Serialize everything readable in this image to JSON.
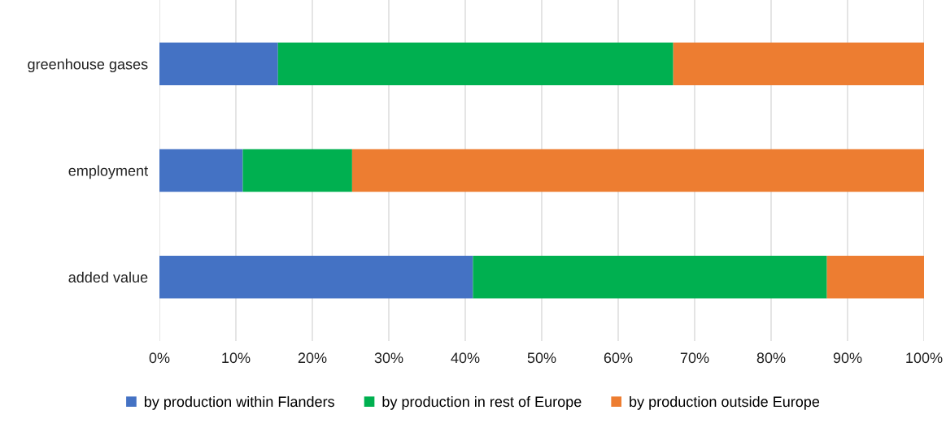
{
  "chart_data": {
    "type": "bar",
    "orientation": "horizontal",
    "stacked": true,
    "categories": [
      "greenhouse gases",
      "employment",
      "added value"
    ],
    "series": [
      {
        "name": "by production within Flanders",
        "color": "#4472c4",
        "values": [
          15.5,
          10.9,
          41.0
        ]
      },
      {
        "name": "by production in rest of Europe",
        "color": "#00b050",
        "values": [
          51.7,
          14.3,
          46.3
        ]
      },
      {
        "name": "by production outside Europe",
        "color": "#ed7d31",
        "values": [
          32.8,
          74.8,
          12.7
        ]
      }
    ],
    "xlim": [
      0,
      100
    ],
    "xticks": [
      {
        "value": 0,
        "label": "0%"
      },
      {
        "value": 10,
        "label": "10%"
      },
      {
        "value": 20,
        "label": "20%"
      },
      {
        "value": 30,
        "label": "30%"
      },
      {
        "value": 40,
        "label": "40%"
      },
      {
        "value": 50,
        "label": "50%"
      },
      {
        "value": 60,
        "label": "60%"
      },
      {
        "value": 70,
        "label": "70%"
      },
      {
        "value": 80,
        "label": "80%"
      },
      {
        "value": 90,
        "label": "90%"
      },
      {
        "value": 100,
        "label": "100%"
      }
    ],
    "grid": "x",
    "legend": "bottom"
  }
}
